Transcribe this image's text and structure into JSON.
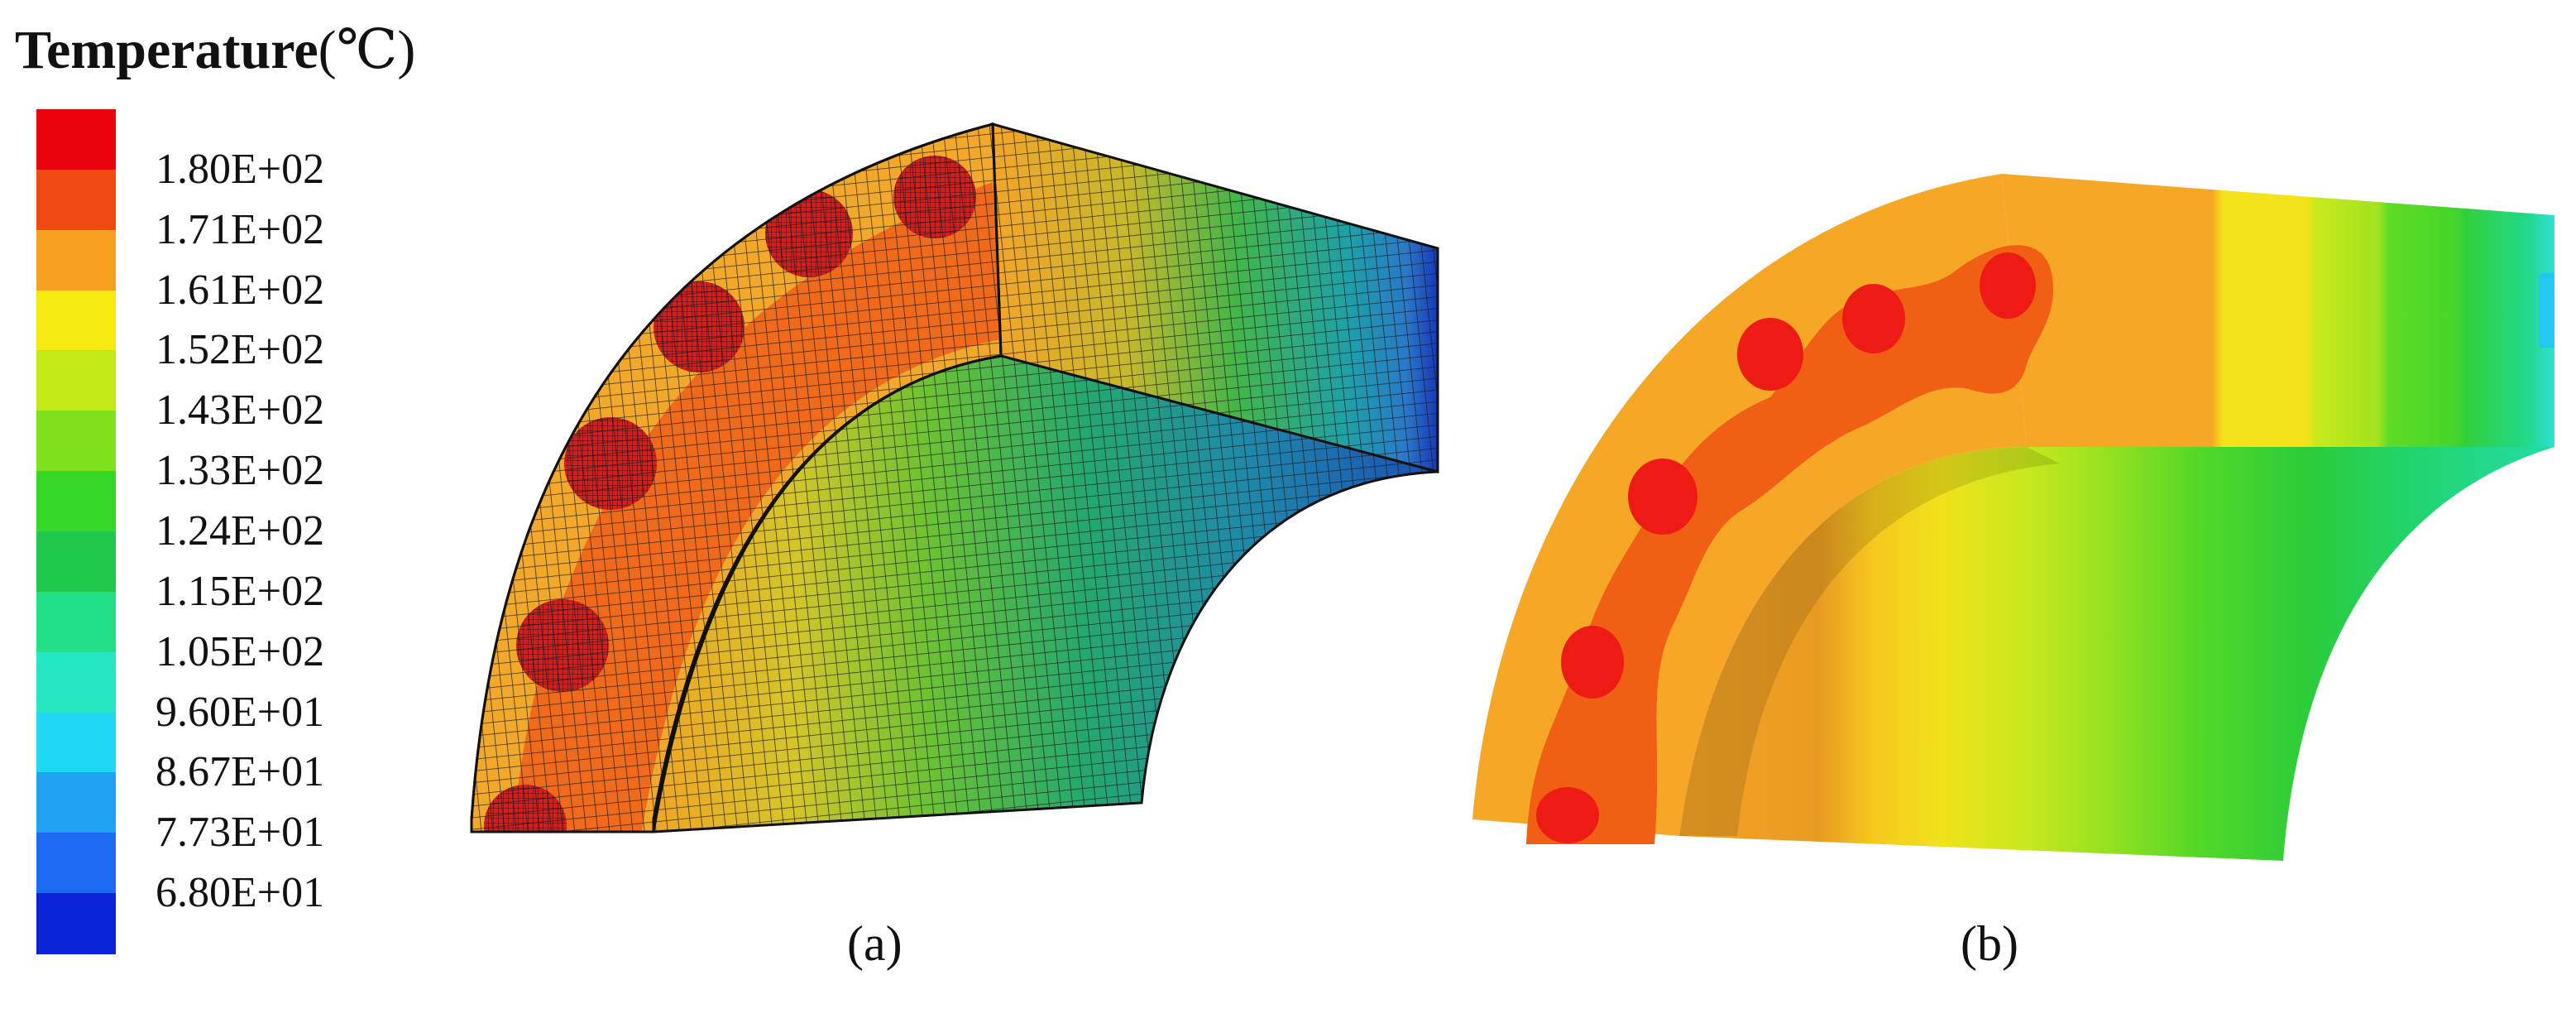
{
  "legend": {
    "title": "Temperature",
    "unit": "(℃)",
    "colors": [
      "#e8000b",
      "#f04a10",
      "#f8a020",
      "#f7ea10",
      "#c3ea16",
      "#7fe21d",
      "#36d727",
      "#20c84b",
      "#23df86",
      "#25e8c3",
      "#1ed8f4",
      "#1fa2f2",
      "#1d6bf2",
      "#0a22d8"
    ],
    "tick_labels": [
      "1.80E+02",
      "1.71E+02",
      "1.61E+02",
      "1.52E+02",
      "1.43E+02",
      "1.33E+02",
      "1.24E+02",
      "1.15E+02",
      "1.05E+02",
      "9.60E+01",
      "8.67E+01",
      "7.73E+01",
      "6.80E+01"
    ]
  },
  "panels": {
    "a": {
      "label": "(a)"
    },
    "b": {
      "label": "(b)"
    }
  }
}
